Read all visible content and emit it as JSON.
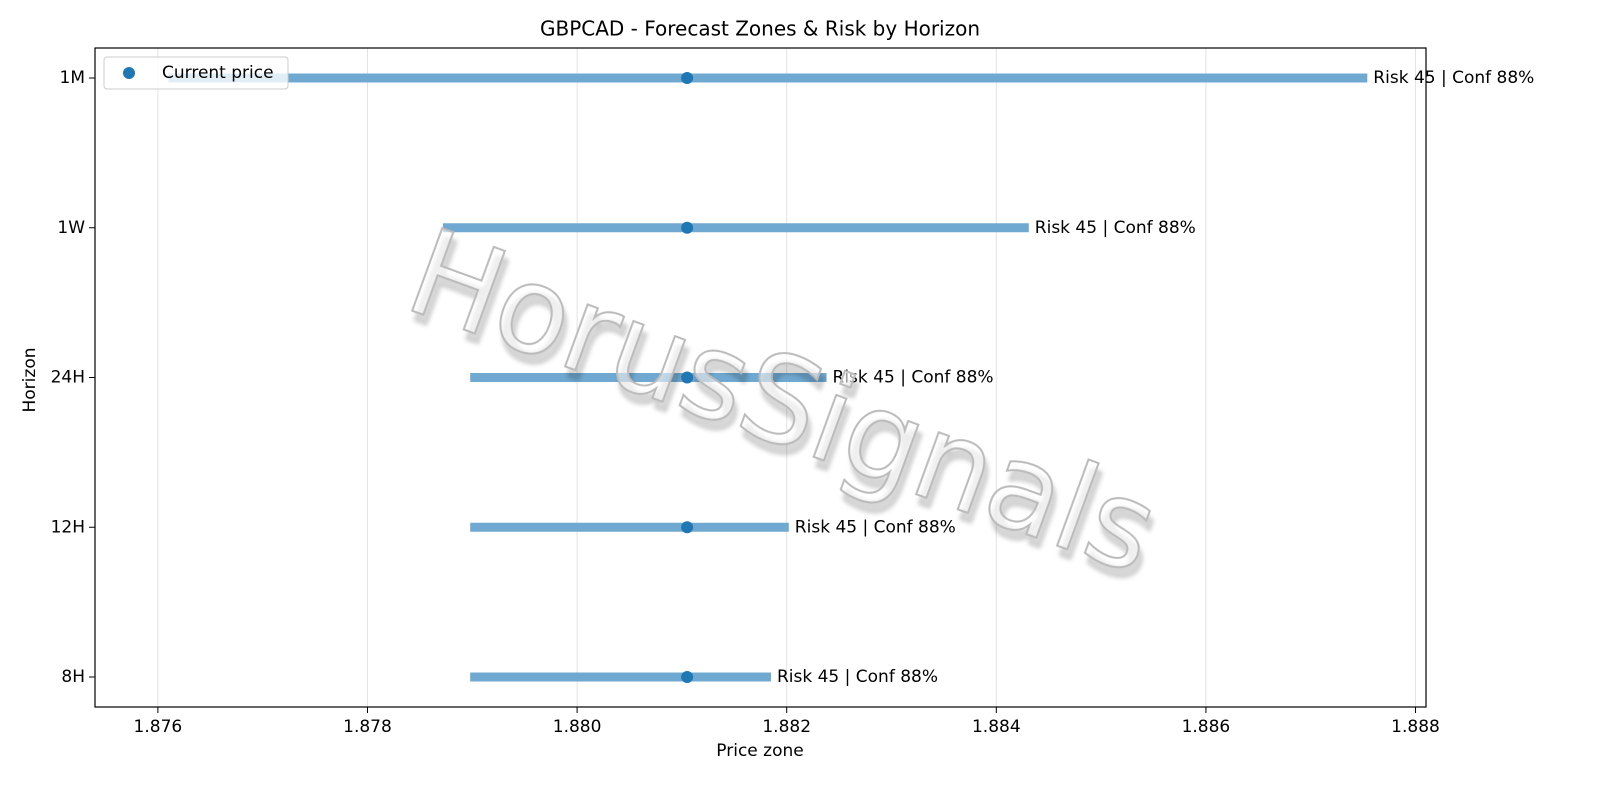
{
  "chart_data": {
    "type": "range",
    "title": "GBPCAD - Forecast Zones & Risk by Horizon",
    "x_label": "Price zone",
    "y_label": "Horizon",
    "categories": [
      "8H",
      "12H",
      "24H",
      "1W",
      "1M"
    ],
    "low": [
      1.87898,
      1.87898,
      1.87898,
      1.87872,
      1.8761
    ],
    "high": [
      1.88185,
      1.88202,
      1.88238,
      1.88431,
      1.88754
    ],
    "bar_color": "#6fa8d0",
    "series": [
      {
        "name": "Current price",
        "color": "#1f77b4",
        "values": [
          1.88105,
          1.88105,
          1.88105,
          1.88105,
          1.88105
        ]
      }
    ],
    "annotations": [
      "Risk 45 | Conf 88%",
      "Risk 45 | Conf 88%",
      "Risk 45 | Conf 88%",
      "Risk 45 | Conf 88%",
      "Risk 45 | Conf 88%"
    ],
    "xlim": [
      1.8754,
      1.8881
    ],
    "xticks": [
      1.876,
      1.878,
      {
        "value": 1.88,
        "label": "1.880"
      },
      1.882,
      1.884,
      1.886,
      1.888
    ],
    "grid": true,
    "legend": "upper left",
    "watermark": "HorusSignals"
  }
}
